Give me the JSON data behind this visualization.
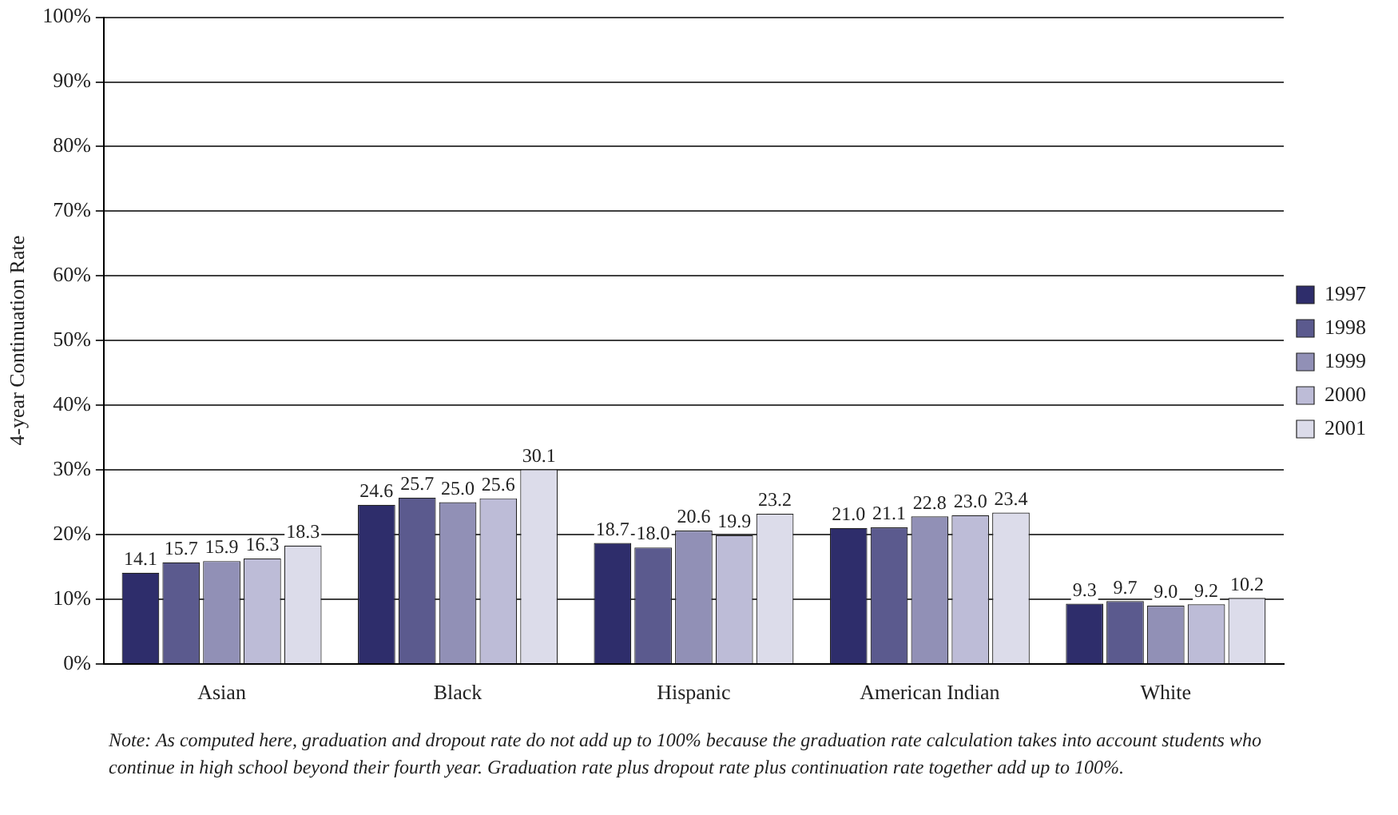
{
  "chart_data": {
    "type": "bar",
    "ylabel": "4-year Continuation Rate",
    "categories": [
      "Asian",
      "Black",
      "Hispanic",
      "American Indian",
      "White"
    ],
    "series": [
      {
        "name": "1997",
        "color": "#2e2d6b",
        "values": [
          14.1,
          24.6,
          18.7,
          21.0,
          9.3
        ],
        "value_labels": [
          "14.1",
          "24.6",
          "18.7",
          "21.0",
          "9.3"
        ]
      },
      {
        "name": "1998",
        "color": "#5b5a8e",
        "values": [
          15.7,
          25.7,
          18.0,
          21.1,
          9.7
        ],
        "value_labels": [
          "15.7",
          "25.7",
          "18.0",
          "21.1",
          "9.7"
        ]
      },
      {
        "name": "1999",
        "color": "#9190b6",
        "values": [
          15.9,
          25.0,
          20.6,
          22.8,
          9.0
        ],
        "value_labels": [
          "15.9",
          "25.0",
          "20.6",
          "22.8",
          "9.0"
        ]
      },
      {
        "name": "2000",
        "color": "#bdbcd7",
        "values": [
          16.3,
          25.6,
          19.9,
          23.0,
          9.2
        ],
        "value_labels": [
          "16.3",
          "25.6",
          "19.9",
          "23.0",
          "9.2"
        ]
      },
      {
        "name": "2001",
        "color": "#dcdcea",
        "values": [
          18.3,
          30.1,
          23.2,
          23.4,
          10.2
        ],
        "value_labels": [
          "18.3",
          "30.1",
          "23.2",
          "23.4",
          "10.2"
        ]
      }
    ],
    "ylim": [
      0,
      100
    ],
    "yticks": [
      {
        "value": 0,
        "label": "0%"
      },
      {
        "value": 10,
        "label": "10%"
      },
      {
        "value": 20,
        "label": "20%"
      },
      {
        "value": 30,
        "label": "30%"
      },
      {
        "value": 40,
        "label": "40%"
      },
      {
        "value": 50,
        "label": "50%"
      },
      {
        "value": 60,
        "label": "60%"
      },
      {
        "value": 70,
        "label": "70%"
      },
      {
        "value": 80,
        "label": "80%"
      },
      {
        "value": 90,
        "label": "90%"
      },
      {
        "value": 100,
        "label": "100%"
      }
    ],
    "grid": "y",
    "legend": "right",
    "annotations": [
      "Note: As computed here, graduation and dropout rate do not add up to 100% because the graduation rate calculation takes into account students who continue in high school beyond their fourth year. Graduation rate plus dropout rate plus continuation rate together add up to 100%."
    ]
  }
}
